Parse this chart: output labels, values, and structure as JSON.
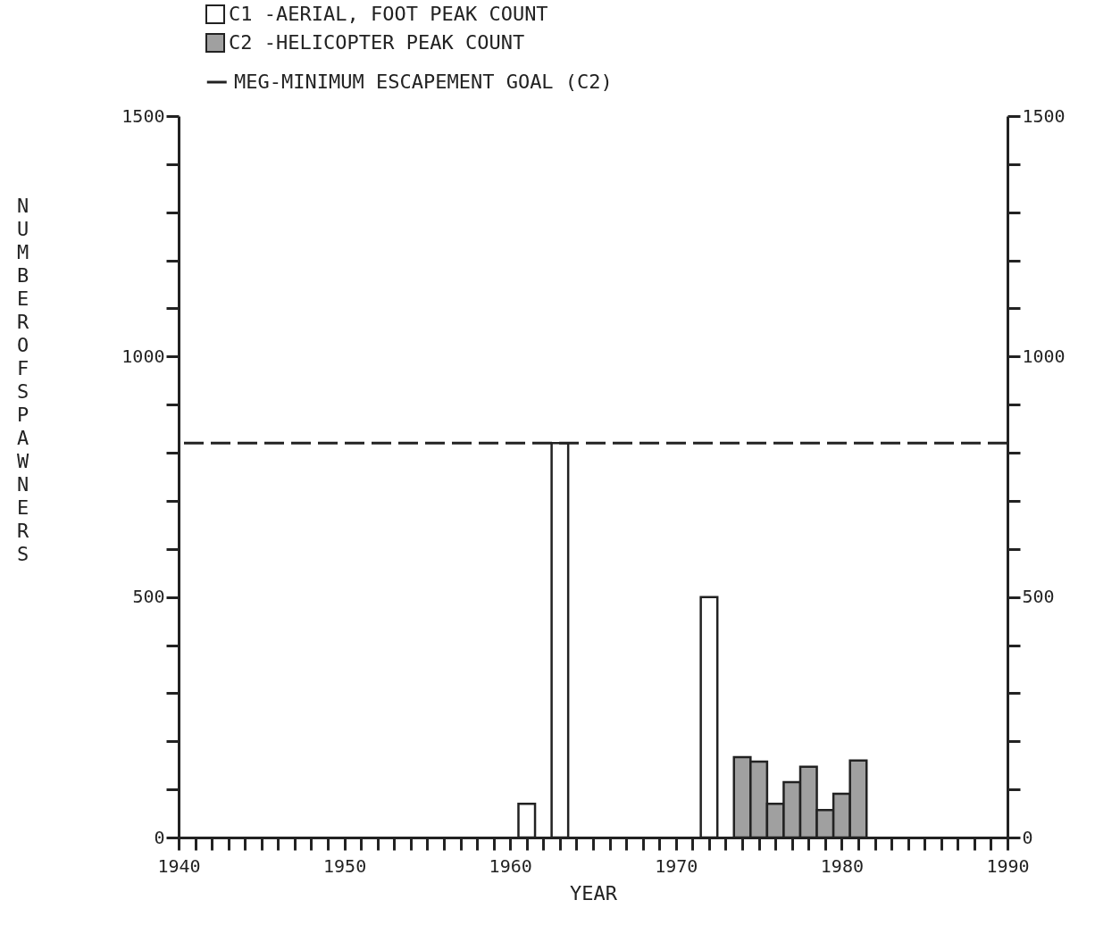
{
  "chart_data": {
    "type": "bar",
    "xlabel": "YEAR",
    "ylabel": "NUMBER OF SPAWNERS",
    "x": [
      1961,
      1963,
      1972,
      1974,
      1975,
      1976,
      1977,
      1978,
      1979,
      1980,
      1981
    ],
    "series": [
      {
        "name": "C1 -AERIAL, FOOT PEAK COUNT",
        "color": "#ffffff",
        "values": [
          70,
          820,
          500,
          null,
          null,
          null,
          null,
          null,
          null,
          null,
          null
        ]
      },
      {
        "name": "C2 -HELICOPTER PEAK COUNT",
        "color": "#a0a0a0",
        "values": [
          null,
          null,
          null,
          167,
          158,
          70,
          115,
          147,
          57,
          91,
          160
        ]
      }
    ],
    "xlim": [
      1940,
      1990
    ],
    "xticks": [
      1940,
      {
        "value": 1941,
        "label": null
      },
      {
        "value": 1942,
        "label": null
      },
      {
        "value": 1943,
        "label": null
      },
      {
        "value": 1944,
        "label": null
      },
      {
        "value": 1945,
        "label": null
      },
      {
        "value": 1946,
        "label": null
      },
      {
        "value": 1947,
        "label": null
      },
      {
        "value": 1948,
        "label": null
      },
      {
        "value": 1949,
        "label": null
      },
      1950,
      {
        "value": 1951,
        "label": null
      },
      {
        "value": 1952,
        "label": null
      },
      {
        "value": 1953,
        "label": null
      },
      {
        "value": 1954,
        "label": null
      },
      {
        "value": 1955,
        "label": null
      },
      {
        "value": 1956,
        "label": null
      },
      {
        "value": 1957,
        "label": null
      },
      {
        "value": 1958,
        "label": null
      },
      {
        "value": 1959,
        "label": null
      },
      1960,
      {
        "value": 1961,
        "label": null
      },
      {
        "value": 1962,
        "label": null
      },
      {
        "value": 1963,
        "label": null
      },
      {
        "value": 1964,
        "label": null
      },
      {
        "value": 1965,
        "label": null
      },
      {
        "value": 1966,
        "label": null
      },
      {
        "value": 1967,
        "label": null
      },
      {
        "value": 1968,
        "label": null
      },
      {
        "value": 1969,
        "label": null
      },
      1970,
      {
        "value": 1971,
        "label": null
      },
      {
        "value": 1972,
        "label": null
      },
      {
        "value": 1973,
        "label": null
      },
      {
        "value": 1974,
        "label": null
      },
      {
        "value": 1975,
        "label": null
      },
      {
        "value": 1976,
        "label": null
      },
      {
        "value": 1977,
        "label": null
      },
      {
        "value": 1978,
        "label": null
      },
      {
        "value": 1979,
        "label": null
      },
      1980,
      {
        "value": 1981,
        "label": null
      },
      {
        "value": 1982,
        "label": null
      },
      {
        "value": 1983,
        "label": null
      },
      {
        "value": 1984,
        "label": null
      },
      {
        "value": 1985,
        "label": null
      },
      {
        "value": 1986,
        "label": null
      },
      {
        "value": 1987,
        "label": null
      },
      {
        "value": 1988,
        "label": null
      },
      {
        "value": 1989,
        "label": null
      },
      1990
    ],
    "ylim": [
      0,
      1500
    ],
    "yticks": [
      0,
      {
        "value": 100,
        "label": null
      },
      {
        "value": 200,
        "label": null
      },
      {
        "value": 300,
        "label": null
      },
      {
        "value": 400,
        "label": null
      },
      500,
      {
        "value": 600,
        "label": null
      },
      {
        "value": 700,
        "label": null
      },
      {
        "value": 800,
        "label": null
      },
      {
        "value": 900,
        "label": null
      },
      1000,
      {
        "value": 1100,
        "label": null
      },
      {
        "value": 1200,
        "label": null
      },
      {
        "value": 1300,
        "label": null
      },
      {
        "value": 1400,
        "label": null
      },
      1500
    ],
    "y2lim": [
      0,
      1500
    ],
    "y2ticks": [
      0,
      {
        "value": 100,
        "label": null
      },
      {
        "value": 200,
        "label": null
      },
      {
        "value": 300,
        "label": null
      },
      {
        "value": 400,
        "label": null
      },
      500,
      {
        "value": 600,
        "label": null
      },
      {
        "value": 700,
        "label": null
      },
      {
        "value": 800,
        "label": null
      },
      {
        "value": 900,
        "label": null
      },
      1000,
      {
        "value": 1100,
        "label": null
      },
      {
        "value": 1200,
        "label": null
      },
      {
        "value": 1300,
        "label": null
      },
      {
        "value": 1400,
        "label": null
      },
      1500
    ],
    "ref_lines": [
      {
        "axis": "y",
        "value": 820,
        "label": "MEG-MINIMUM ESCAPEMENT GOAL (C2)",
        "color": "#222222",
        "line_style": "dashed"
      }
    ],
    "legend": "top",
    "grid": false
  }
}
